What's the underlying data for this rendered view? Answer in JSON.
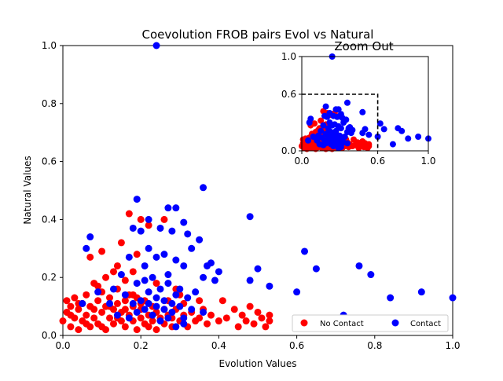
{
  "chart_data": [
    {
      "type": "scatter",
      "title": "Coevolution FROB pairs Evol vs Natural",
      "xlabel": "Evolution Values",
      "ylabel": "Natural Values",
      "xlim": [
        0,
        1.0
      ],
      "ylim": [
        0,
        1.0
      ],
      "xticks": [
        "0.0",
        "0.2",
        "0.4",
        "0.6",
        "0.8",
        "1.0"
      ],
      "yticks": [
        "0.0",
        "0.2",
        "0.4",
        "0.6",
        "0.8",
        "1.0"
      ],
      "legend_position": "lower-right",
      "grid": false,
      "series": [
        {
          "name": "No Contact",
          "color": "#ff0000",
          "points": [
            [
              0.0,
              0.05
            ],
            [
              0.01,
              0.08
            ],
            [
              0.01,
              0.12
            ],
            [
              0.02,
              0.03
            ],
            [
              0.02,
              0.1
            ],
            [
              0.03,
              0.06
            ],
            [
              0.03,
              0.13
            ],
            [
              0.04,
              0.02
            ],
            [
              0.04,
              0.09
            ],
            [
              0.05,
              0.05
            ],
            [
              0.05,
              0.11
            ],
            [
              0.06,
              0.07
            ],
            [
              0.06,
              0.14
            ],
            [
              0.07,
              0.03
            ],
            [
              0.07,
              0.1
            ],
            [
              0.08,
              0.06
            ],
            [
              0.08,
              0.18
            ],
            [
              0.09,
              0.04
            ],
            [
              0.09,
              0.12
            ],
            [
              0.1,
              0.08
            ],
            [
              0.1,
              0.15
            ],
            [
              0.11,
              0.02
            ],
            [
              0.11,
              0.1
            ],
            [
              0.12,
              0.06
            ],
            [
              0.12,
              0.13
            ],
            [
              0.13,
              0.04
            ],
            [
              0.13,
              0.09
            ],
            [
              0.14,
              0.11
            ],
            [
              0.14,
              0.16
            ],
            [
              0.15,
              0.05
            ],
            [
              0.15,
              0.08
            ],
            [
              0.16,
              0.12
            ],
            [
              0.16,
              0.03
            ],
            [
              0.17,
              0.07
            ],
            [
              0.17,
              0.14
            ],
            [
              0.18,
              0.05
            ],
            [
              0.18,
              0.1
            ],
            [
              0.19,
              0.02
            ],
            [
              0.19,
              0.13
            ],
            [
              0.2,
              0.06
            ],
            [
              0.2,
              0.09
            ],
            [
              0.21,
              0.04
            ],
            [
              0.21,
              0.12
            ],
            [
              0.22,
              0.07
            ],
            [
              0.22,
              0.03
            ],
            [
              0.23,
              0.1
            ],
            [
              0.23,
              0.05
            ],
            [
              0.24,
              0.08
            ],
            [
              0.24,
              0.02
            ],
            [
              0.25,
              0.06
            ],
            [
              0.26,
              0.09
            ],
            [
              0.26,
              0.04
            ],
            [
              0.27,
              0.07
            ],
            [
              0.28,
              0.03
            ],
            [
              0.28,
              0.06
            ],
            [
              0.29,
              0.09
            ],
            [
              0.3,
              0.05
            ],
            [
              0.31,
              0.07
            ],
            [
              0.32,
              0.03
            ],
            [
              0.33,
              0.08
            ],
            [
              0.34,
              0.05
            ],
            [
              0.35,
              0.06
            ],
            [
              0.36,
              0.09
            ],
            [
              0.37,
              0.04
            ],
            [
              0.38,
              0.07
            ],
            [
              0.4,
              0.05
            ],
            [
              0.41,
              0.12
            ],
            [
              0.42,
              0.06
            ],
            [
              0.44,
              0.09
            ],
            [
              0.45,
              0.03
            ],
            [
              0.46,
              0.07
            ],
            [
              0.47,
              0.05
            ],
            [
              0.48,
              0.1
            ],
            [
              0.49,
              0.04
            ],
            [
              0.5,
              0.08
            ],
            [
              0.51,
              0.06
            ],
            [
              0.52,
              0.03
            ],
            [
              0.53,
              0.07
            ],
            [
              0.53,
              0.05
            ],
            [
              0.02,
              0.07
            ],
            [
              0.04,
              0.11
            ],
            [
              0.06,
              0.04
            ],
            [
              0.08,
              0.09
            ],
            [
              0.1,
              0.03
            ],
            [
              0.12,
              0.1
            ],
            [
              0.14,
              0.06
            ],
            [
              0.16,
              0.09
            ],
            [
              0.18,
              0.14
            ],
            [
              0.2,
              0.11
            ],
            [
              0.07,
              0.27
            ],
            [
              0.1,
              0.29
            ],
            [
              0.14,
              0.24
            ],
            [
              0.15,
              0.32
            ],
            [
              0.17,
              0.42
            ],
            [
              0.19,
              0.28
            ],
            [
              0.2,
              0.4
            ],
            [
              0.22,
              0.38
            ],
            [
              0.26,
              0.4
            ],
            [
              0.13,
              0.22
            ],
            [
              0.11,
              0.2
            ],
            [
              0.09,
              0.17
            ],
            [
              0.16,
              0.19
            ],
            [
              0.18,
              0.22
            ],
            [
              0.24,
              0.18
            ],
            [
              0.3,
              0.14
            ],
            [
              0.27,
              0.12
            ],
            [
              0.31,
              0.11
            ],
            [
              0.35,
              0.12
            ],
            [
              0.29,
              0.16
            ]
          ]
        },
        {
          "name": "Contact",
          "color": "#0000ff",
          "points": [
            [
              0.24,
              1.0
            ],
            [
              0.36,
              0.51
            ],
            [
              0.19,
              0.47
            ],
            [
              0.48,
              0.41
            ],
            [
              0.29,
              0.44
            ],
            [
              0.27,
              0.44
            ],
            [
              0.31,
              0.39
            ],
            [
              0.22,
              0.4
            ],
            [
              0.25,
              0.37
            ],
            [
              0.2,
              0.36
            ],
            [
              0.32,
              0.35
            ],
            [
              0.35,
              0.33
            ],
            [
              0.18,
              0.37
            ],
            [
              0.28,
              0.36
            ],
            [
              0.22,
              0.3
            ],
            [
              0.26,
              0.28
            ],
            [
              0.29,
              0.26
            ],
            [
              0.33,
              0.3
            ],
            [
              0.38,
              0.25
            ],
            [
              0.4,
              0.22
            ],
            [
              0.06,
              0.3
            ],
            [
              0.07,
              0.34
            ],
            [
              0.17,
              0.27
            ],
            [
              0.21,
              0.24
            ],
            [
              0.24,
              0.27
            ],
            [
              0.31,
              0.24
            ],
            [
              0.36,
              0.2
            ],
            [
              0.19,
              0.18
            ],
            [
              0.23,
              0.2
            ],
            [
              0.27,
              0.21
            ],
            [
              0.5,
              0.23
            ],
            [
              0.62,
              0.29
            ],
            [
              0.65,
              0.23
            ],
            [
              0.76,
              0.24
            ],
            [
              0.79,
              0.21
            ],
            [
              0.6,
              0.15
            ],
            [
              0.53,
              0.17
            ],
            [
              0.84,
              0.13
            ],
            [
              0.92,
              0.15
            ],
            [
              1.0,
              0.13
            ],
            [
              0.72,
              0.07
            ],
            [
              0.48,
              0.19
            ],
            [
              0.16,
              0.14
            ],
            [
              0.2,
              0.12
            ],
            [
              0.22,
              0.15
            ],
            [
              0.24,
              0.1
            ],
            [
              0.25,
              0.16
            ],
            [
              0.26,
              0.12
            ],
            [
              0.27,
              0.18
            ],
            [
              0.28,
              0.08
            ],
            [
              0.29,
              0.14
            ],
            [
              0.3,
              0.1
            ],
            [
              0.31,
              0.06
            ],
            [
              0.32,
              0.13
            ],
            [
              0.33,
              0.09
            ],
            [
              0.34,
              0.15
            ],
            [
              0.21,
              0.09
            ],
            [
              0.23,
              0.07
            ],
            [
              0.25,
              0.05
            ],
            [
              0.27,
              0.06
            ],
            [
              0.29,
              0.03
            ],
            [
              0.31,
              0.04
            ],
            [
              0.26,
              0.09
            ],
            [
              0.24,
              0.13
            ],
            [
              0.22,
              0.11
            ],
            [
              0.19,
              0.08
            ],
            [
              0.18,
              0.11
            ],
            [
              0.17,
              0.06
            ],
            [
              0.28,
              0.11
            ],
            [
              0.3,
              0.16
            ],
            [
              0.09,
              0.15
            ],
            [
              0.12,
              0.11
            ],
            [
              0.14,
              0.07
            ],
            [
              0.36,
              0.08
            ],
            [
              0.39,
              0.19
            ],
            [
              0.37,
              0.24
            ],
            [
              0.05,
              0.11
            ],
            [
              0.13,
              0.16
            ],
            [
              0.15,
              0.21
            ],
            [
              0.21,
              0.19
            ]
          ]
        }
      ]
    },
    {
      "type": "scatter",
      "title": "Zoom Out",
      "xlim": [
        0,
        1.0
      ],
      "ylim": [
        0,
        1.0
      ],
      "xticks": [
        "0.0",
        "0.6",
        "1.0"
      ],
      "yticks": [
        "0.0",
        "0.6",
        "1.0"
      ],
      "zoom_box": [
        0.6,
        0.6
      ],
      "grid": false
    }
  ]
}
